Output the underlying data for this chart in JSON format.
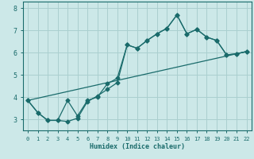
{
  "xlabel": "Humidex (Indice chaleur)",
  "bg_color": "#cce8e8",
  "grid_color": "#aacfcf",
  "line_color": "#1a6b6b",
  "xlim": [
    -0.5,
    22.5
  ],
  "ylim": [
    2.5,
    8.3
  ],
  "xticks": [
    0,
    1,
    2,
    3,
    4,
    5,
    6,
    7,
    8,
    9,
    10,
    11,
    12,
    13,
    14,
    15,
    16,
    17,
    18,
    19,
    20,
    21,
    22
  ],
  "yticks": [
    3,
    4,
    5,
    6,
    7,
    8
  ],
  "line1_x": [
    0,
    1,
    2,
    3,
    4,
    5,
    6,
    7,
    8,
    9,
    10,
    11,
    12,
    13,
    14,
    15,
    16,
    17,
    18,
    19,
    20,
    21,
    22
  ],
  "line1_y": [
    3.85,
    3.3,
    2.95,
    2.95,
    2.9,
    3.05,
    3.8,
    4.05,
    4.35,
    4.65,
    6.35,
    6.2,
    6.55,
    6.85,
    7.1,
    7.7,
    6.85,
    7.05,
    6.7,
    6.55,
    5.9,
    5.95,
    6.05
  ],
  "line2_x": [
    0,
    1,
    2,
    3,
    4,
    5,
    6,
    7,
    8,
    9,
    10,
    11,
    12,
    13,
    14,
    15,
    16,
    17,
    18,
    19,
    20,
    21,
    22
  ],
  "line2_y": [
    3.85,
    3.3,
    2.95,
    2.95,
    3.85,
    3.15,
    3.85,
    4.0,
    4.6,
    4.85,
    6.35,
    6.2,
    6.55,
    6.85,
    7.1,
    7.7,
    6.85,
    7.05,
    6.7,
    6.55,
    5.9,
    5.95,
    6.05
  ],
  "line3_x": [
    0,
    22
  ],
  "line3_y": [
    3.85,
    6.05
  ]
}
